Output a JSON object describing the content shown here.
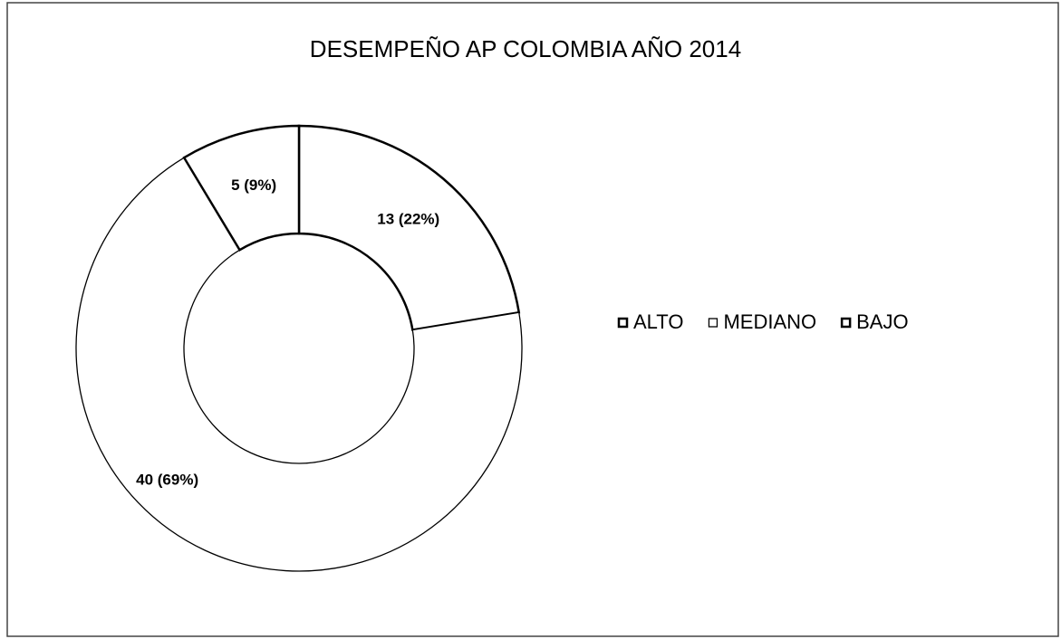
{
  "chart_data": {
    "type": "donut",
    "title": "DESEMPEÑO AP COLOMBIA AÑO 2014",
    "categories": [
      "ALTO",
      "MEDIANO",
      "BAJO"
    ],
    "values": [
      13,
      40,
      5
    ],
    "value_labels": [
      "13 (22%)",
      "40 (69%)",
      "5 (9%)"
    ],
    "colors": [
      "#ffffff",
      "#ffffff",
      "#ffffff"
    ],
    "legend": "right"
  }
}
